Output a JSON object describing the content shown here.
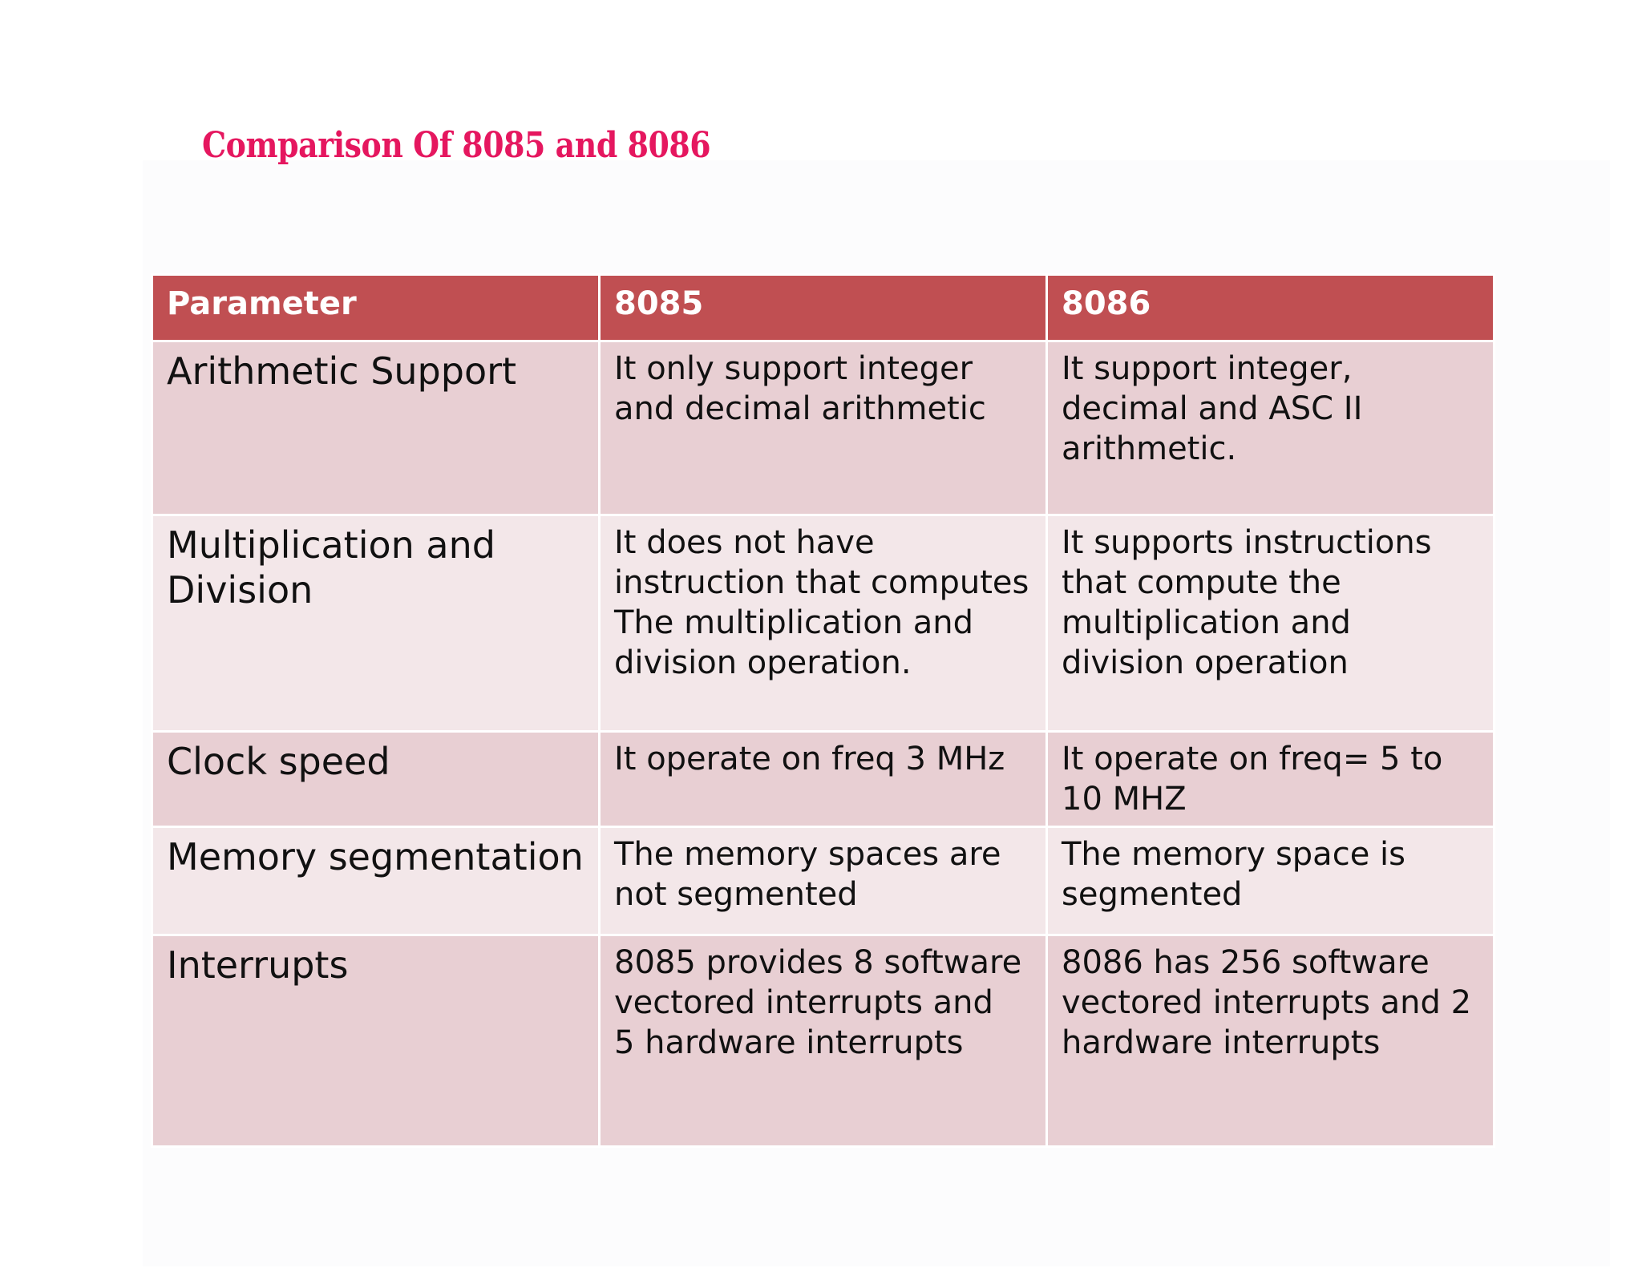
{
  "title": "Comparison Of 8085 and 8086",
  "colors": {
    "title": "#e5175f",
    "header_bg": "#c04f52",
    "row_odd": "#e8cfd3",
    "row_even": "#f3e7e9"
  },
  "table": {
    "headers": [
      "Parameter",
      "8085",
      "8086"
    ],
    "rows": [
      {
        "parameter": "Arithmetic Support",
        "i8085": "It only support integer and decimal arithmetic",
        "i8086": "It support integer, decimal and ASC II arithmetic."
      },
      {
        "parameter": "Multiplication and Division",
        "i8085": "It does not have instruction that computes\nThe multiplication and division operation.",
        "i8086": "It supports instructions that compute the multiplication and division operation"
      },
      {
        "parameter": "Clock speed",
        "i8085": "It operate on freq 3 MHz",
        "i8086": "It operate on freq= 5 to 10 MHZ"
      },
      {
        "parameter": "Memory segmentation",
        "i8085": "The memory spaces are not segmented",
        "i8086": "The memory space is segmented"
      },
      {
        "parameter": "Interrupts",
        "i8085": "8085 provides 8 software vectored interrupts and  5 hardware interrupts",
        "i8086": "8086 has 256 software vectored interrupts and 2 hardware interrupts"
      }
    ]
  }
}
